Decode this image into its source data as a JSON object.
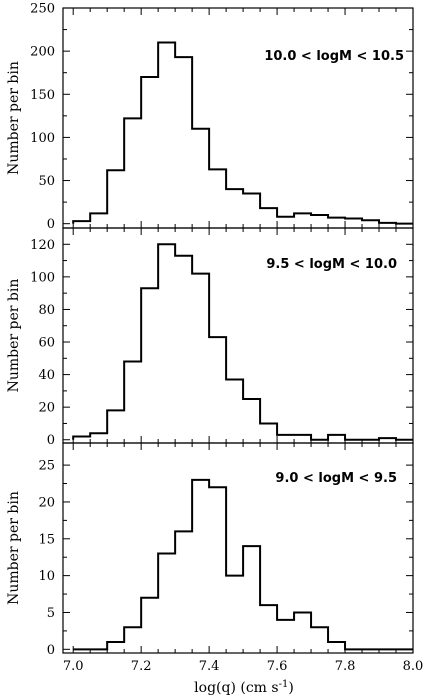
{
  "chart_data": {
    "type": "histogram",
    "xlabel": "log(q) (cm s",
    "xlabel_superscript": "-1",
    "xlabel_close": ")",
    "x_bin_edges": [
      7.0,
      7.05,
      7.1,
      7.15,
      7.2,
      7.25,
      7.3,
      7.35,
      7.4,
      7.45,
      7.5,
      7.55,
      7.6,
      7.65,
      7.7,
      7.75,
      7.8,
      7.85,
      7.9,
      7.95,
      8.0
    ],
    "xlim": [
      6.97,
      8.0
    ],
    "xticks": [
      7.0,
      7.2,
      7.4,
      7.6,
      7.8,
      8.0
    ],
    "xtick_labels": [
      "7.0",
      "7.2",
      "7.4",
      "7.6",
      "7.8",
      "8.0"
    ],
    "panels": [
      {
        "annotation": "10.0 < logM  < 10.5",
        "ylabel": "Number per bin",
        "ylim": [
          -5,
          250
        ],
        "yticks": [
          0,
          50,
          100,
          150,
          200,
          250
        ],
        "ytick_labels": [
          "0",
          "50",
          "100",
          "150",
          "200",
          "250"
        ],
        "counts": [
          3,
          12,
          62,
          122,
          170,
          210,
          193,
          110,
          63,
          40,
          35,
          18,
          8,
          12,
          10,
          7,
          6,
          4,
          1,
          0
        ]
      },
      {
        "annotation": "9.5 < logM  < 10.0",
        "ylabel": "Number per bin",
        "ylim": [
          -2,
          130
        ],
        "yticks": [
          0,
          20,
          40,
          60,
          80,
          100,
          120
        ],
        "ytick_labels": [
          "0",
          "20",
          "40",
          "60",
          "80",
          "100",
          "120"
        ],
        "counts": [
          2,
          4,
          18,
          48,
          93,
          120,
          113,
          102,
          63,
          37,
          25,
          10,
          3,
          3,
          0,
          3,
          0,
          0,
          1,
          0
        ]
      },
      {
        "annotation": "9.0 < logM  < 9.5",
        "ylabel": "Number per bin",
        "ylim": [
          -0.5,
          28
        ],
        "yticks": [
          0,
          5,
          10,
          15,
          20,
          25
        ],
        "ytick_labels": [
          "0",
          "5",
          "10",
          "15",
          "20",
          "25"
        ],
        "counts": [
          0,
          0,
          1,
          3,
          7,
          13,
          16,
          23,
          22,
          10,
          14,
          6,
          4,
          5,
          3,
          1,
          0,
          0,
          0,
          0
        ]
      }
    ]
  }
}
